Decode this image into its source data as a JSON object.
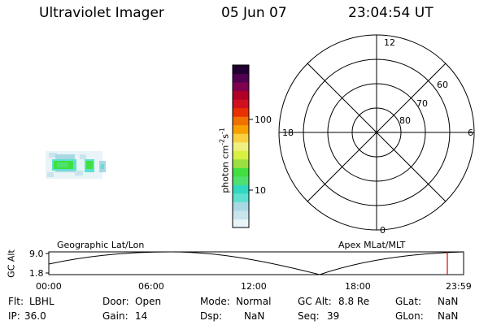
{
  "header": {
    "instrument": "Ultraviolet Imager",
    "date": "05 Jun 07",
    "time": "23:04:54 UT"
  },
  "colorbar": {
    "label": "photon cm",
    "label_sup1": "-2",
    "label_mid": "s",
    "label_sup2": "-1",
    "tick_100": "100",
    "tick_10": "10",
    "colors": [
      "#e8f4f8",
      "#c8e4ec",
      "#a8d8e4",
      "#5ee0d0",
      "#30d8c0",
      "#50e070",
      "#40e040",
      "#9be040",
      "#d8f040",
      "#f0f080",
      "#f8d040",
      "#f8a000",
      "#f07000",
      "#e83000",
      "#d01020",
      "#b00028",
      "#800050",
      "#500050",
      "#200030"
    ]
  },
  "polar": {
    "mlt_labels": {
      "top": "12",
      "left": "18",
      "right": "6",
      "bottom": "0"
    },
    "lat_labels": [
      "60",
      "70",
      "80"
    ]
  },
  "timeline": {
    "left_label": "Geographic Lat/Lon",
    "right_label": "Apex MLat/MLT",
    "y_axis_label": "GC Alt",
    "y_top": "9.0",
    "y_bottom": "1.8",
    "x_ticks": [
      "00:00",
      "06:00",
      "12:00",
      "18:00",
      "23:59"
    ],
    "marker_color": "#e00000"
  },
  "footer": {
    "flt_label": "Flt:",
    "flt_value": "LBHL",
    "door_label": "Door:",
    "door_value": "Open",
    "mode_label": "Mode:",
    "mode_value": "Normal",
    "gcalt_label": "GC Alt:",
    "gcalt_value": "8.8 Re",
    "glat_label": "GLat:",
    "glat_value": "NaN",
    "ip_label": "IP:",
    "ip_value": "36.0",
    "gain_label": "Gain:",
    "gain_value": "14",
    "dsp_label": "Dsp:",
    "dsp_value": "NaN",
    "seq_label": "Seq:",
    "seq_value": "39",
    "glon_label": "GLon:",
    "glon_value": "NaN"
  }
}
